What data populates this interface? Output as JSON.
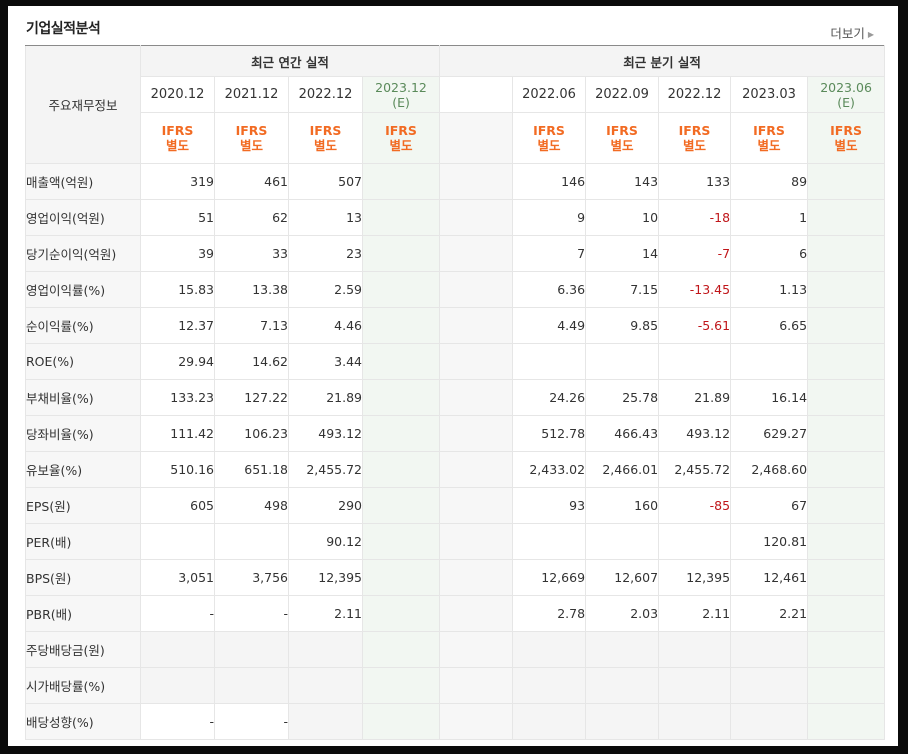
{
  "title": "기업실적분석",
  "more_label": "더보기",
  "header": {
    "row_label": "주요재무정보",
    "annual_group": "최근 연간 실적",
    "quarter_group": "최근 분기 실적",
    "annual_periods": [
      {
        "label": "2020.12",
        "sub": ""
      },
      {
        "label": "2021.12",
        "sub": ""
      },
      {
        "label": "2022.12",
        "sub": ""
      },
      {
        "label": "2023.12",
        "sub": "(E)"
      }
    ],
    "quarter_periods": [
      {
        "label": "2022.06",
        "sub": ""
      },
      {
        "label": "2022.09",
        "sub": ""
      },
      {
        "label": "2022.12",
        "sub": ""
      },
      {
        "label": "2023.03",
        "sub": ""
      },
      {
        "label": "2023.06",
        "sub": "(E)"
      }
    ],
    "ifrs_line1": "IFRS",
    "ifrs_line2": "별도"
  },
  "rows": [
    {
      "label": "매출액(억원)",
      "annual": [
        "319",
        "461",
        "507",
        ""
      ],
      "quarter": [
        "146",
        "143",
        "133",
        "89",
        ""
      ]
    },
    {
      "label": "영업이익(억원)",
      "annual": [
        "51",
        "62",
        "13",
        ""
      ],
      "quarter": [
        "9",
        "10",
        "-18",
        "1",
        ""
      ]
    },
    {
      "label": "당기순이익(억원)",
      "annual": [
        "39",
        "33",
        "23",
        ""
      ],
      "quarter": [
        "7",
        "14",
        "-7",
        "6",
        ""
      ]
    },
    {
      "label": "영업이익률(%)",
      "annual": [
        "15.83",
        "13.38",
        "2.59",
        ""
      ],
      "quarter": [
        "6.36",
        "7.15",
        "-13.45",
        "1.13",
        ""
      ]
    },
    {
      "label": "순이익률(%)",
      "annual": [
        "12.37",
        "7.13",
        "4.46",
        ""
      ],
      "quarter": [
        "4.49",
        "9.85",
        "-5.61",
        "6.65",
        ""
      ]
    },
    {
      "label": "ROE(%)",
      "annual": [
        "29.94",
        "14.62",
        "3.44",
        ""
      ],
      "quarter": [
        "",
        "",
        "",
        "",
        ""
      ]
    },
    {
      "label": "부채비율(%)",
      "annual": [
        "133.23",
        "127.22",
        "21.89",
        ""
      ],
      "quarter": [
        "24.26",
        "25.78",
        "21.89",
        "16.14",
        ""
      ]
    },
    {
      "label": "당좌비율(%)",
      "annual": [
        "111.42",
        "106.23",
        "493.12",
        ""
      ],
      "quarter": [
        "512.78",
        "466.43",
        "493.12",
        "629.27",
        ""
      ]
    },
    {
      "label": "유보율(%)",
      "annual": [
        "510.16",
        "651.18",
        "2,455.72",
        ""
      ],
      "quarter": [
        "2,433.02",
        "2,466.01",
        "2,455.72",
        "2,468.60",
        ""
      ]
    },
    {
      "label": "EPS(원)",
      "annual": [
        "605",
        "498",
        "290",
        ""
      ],
      "quarter": [
        "93",
        "160",
        "-85",
        "67",
        ""
      ]
    },
    {
      "label": "PER(배)",
      "annual": [
        "",
        "",
        "90.12",
        ""
      ],
      "quarter": [
        "",
        "",
        "",
        "120.81",
        ""
      ]
    },
    {
      "label": "BPS(원)",
      "annual": [
        "3,051",
        "3,756",
        "12,395",
        ""
      ],
      "quarter": [
        "12,669",
        "12,607",
        "12,395",
        "12,461",
        ""
      ]
    },
    {
      "label": "PBR(배)",
      "annual": [
        "-",
        "-",
        "2.11",
        ""
      ],
      "quarter": [
        "2.78",
        "2.03",
        "2.11",
        "2.21",
        ""
      ]
    },
    {
      "label": "주당배당금(원)",
      "annual": [
        "",
        "",
        "",
        ""
      ],
      "quarter": [
        "",
        "",
        "",
        "",
        ""
      ]
    },
    {
      "label": "시가배당률(%)",
      "annual": [
        "",
        "",
        "",
        ""
      ],
      "quarter": [
        "",
        "",
        "",
        "",
        ""
      ]
    },
    {
      "label": "배당성향(%)",
      "annual": [
        "-",
        "-",
        "",
        ""
      ],
      "quarter": [
        "",
        "",
        "",
        "",
        ""
      ]
    }
  ],
  "negative_color": "#c0161a",
  "ifrs_color": "#f26b23",
  "estimate_bg": "#f2f7f2"
}
